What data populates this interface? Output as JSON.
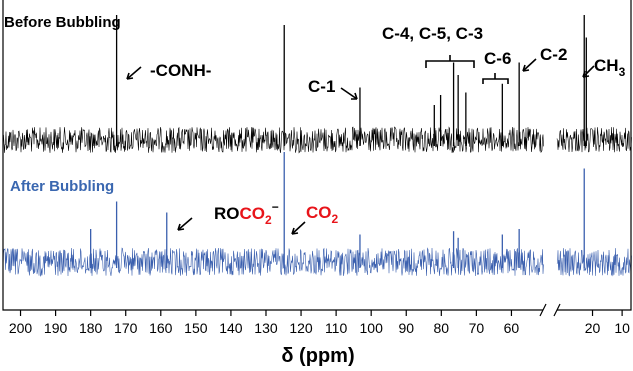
{
  "chart_data": {
    "type": "line",
    "title": "",
    "xlabel": "δ (ppm)",
    "x_axis": {
      "reversed": true,
      "broken": true,
      "segments": [
        {
          "range": [
            205,
            51
          ],
          "ticks": [
            200,
            190,
            180,
            170,
            160,
            150,
            140,
            130,
            120,
            110,
            100,
            90,
            80,
            70,
            60
          ]
        },
        {
          "range": [
            32,
            7
          ],
          "ticks": [
            20,
            10
          ]
        }
      ],
      "tick_labels": [
        "200",
        "190",
        "180",
        "170",
        "160",
        "150",
        "140",
        "130",
        "120",
        "110",
        "100",
        "90",
        "80",
        "70",
        "60",
        "20",
        "10"
      ]
    },
    "y_axis": {
      "visible": false
    },
    "grid": false,
    "series": [
      {
        "name": "Before Bubbling",
        "color": "#000000",
        "noise_level": 1,
        "peaks": [
          {
            "ppm": 172.6,
            "height": 1.0
          },
          {
            "ppm": 124.8,
            "height": 0.92
          },
          {
            "ppm": 103.2,
            "height": 0.42
          },
          {
            "ppm": 82.0,
            "height": 0.28
          },
          {
            "ppm": 80.2,
            "height": 0.36
          },
          {
            "ppm": 76.5,
            "height": 0.62
          },
          {
            "ppm": 75.2,
            "height": 0.52
          },
          {
            "ppm": 73.0,
            "height": 0.38
          },
          {
            "ppm": 62.6,
            "height": 0.45
          },
          {
            "ppm": 57.8,
            "height": 0.62
          },
          {
            "ppm": 22.8,
            "height": 1.0
          },
          {
            "ppm": 22.1,
            "height": 0.82
          }
        ]
      },
      {
        "name": "After Bubbling",
        "color": "#3a5fae",
        "noise_level": 1,
        "peaks": [
          {
            "ppm": 180.0,
            "height": 0.3
          },
          {
            "ppm": 172.6,
            "height": 0.55
          },
          {
            "ppm": 158.3,
            "height": 0.45
          },
          {
            "ppm": 124.8,
            "height": 1.0
          },
          {
            "ppm": 103.2,
            "height": 0.25
          },
          {
            "ppm": 76.5,
            "height": 0.28
          },
          {
            "ppm": 75.2,
            "height": 0.22
          },
          {
            "ppm": 62.6,
            "height": 0.25
          },
          {
            "ppm": 57.8,
            "height": 0.3
          },
          {
            "ppm": 22.8,
            "height": 0.85
          }
        ]
      }
    ],
    "annotations": [
      {
        "text": "-CONH-",
        "series": "Before Bubbling"
      },
      {
        "text": "C-1",
        "series": "Before Bubbling"
      },
      {
        "text": "C-4, C-5, C-3",
        "series": "Before Bubbling"
      },
      {
        "text": "C-6",
        "series": "Before Bubbling"
      },
      {
        "text": "C-2",
        "series": "Before Bubbling"
      },
      {
        "text": "CH",
        "subscript": "3",
        "series": "Before Bubbling"
      },
      {
        "text": "RO",
        "highlight": "CO",
        "subscript": "2",
        "superscript": "−",
        "highlight_color": "#e8141a",
        "series": "After Bubbling"
      },
      {
        "text": "CO",
        "subscript": "2",
        "color": "#e8141a",
        "series": "After Bubbling"
      }
    ]
  }
}
